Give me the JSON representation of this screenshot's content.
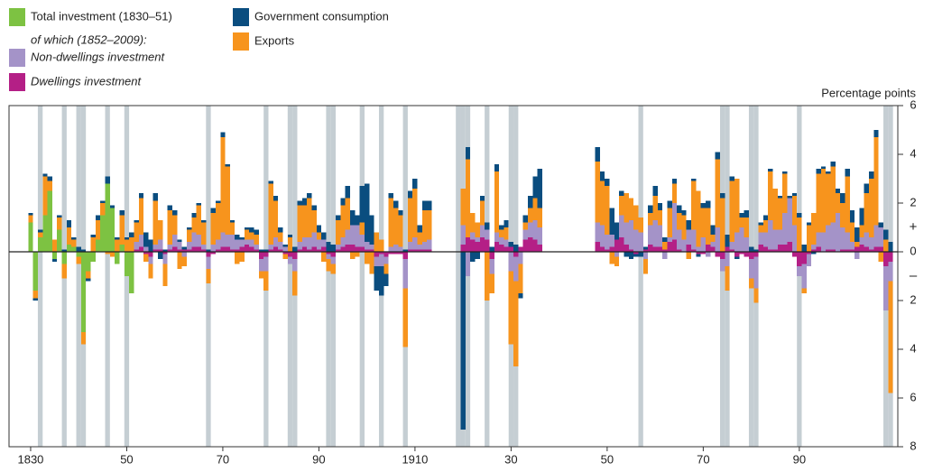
{
  "chart_data": {
    "type": "stacked-bar",
    "y_axis_label": "Percentage points",
    "positive_sign": "+",
    "negative_sign": "–",
    "legend_subheading": "of which (1852–2009):",
    "ylim": [
      -8,
      6
    ],
    "yticks": [
      6,
      4,
      2,
      0,
      {
        "value": -2,
        "label": "2"
      },
      {
        "value": -4,
        "label": "4"
      },
      {
        "value": -6,
        "label": "6"
      },
      {
        "value": -8,
        "label": "8"
      }
    ],
    "xlim": [
      1825.5,
      2010.5
    ],
    "xticks": [
      1830,
      {
        "value": 1850,
        "label": "50"
      },
      {
        "value": 1870,
        "label": "70"
      },
      {
        "value": 1890,
        "label": "90"
      },
      1910,
      {
        "value": 1930,
        "label": "30"
      },
      {
        "value": 1950,
        "label": "50"
      },
      {
        "value": 1970,
        "label": "70"
      },
      {
        "value": 1990,
        "label": "90"
      }
    ],
    "shade_color": "#c5ced3",
    "shaded_years": [
      1832,
      1837,
      1840,
      1841,
      1846,
      1850,
      1867,
      1879,
      1884,
      1885,
      1892,
      1893,
      1899,
      1903,
      1908,
      1919,
      1920,
      1921,
      1925,
      1930,
      1931,
      1957,
      1974,
      1975,
      1980,
      1981,
      1990,
      2008,
      2009
    ],
    "x": [
      1830,
      1831,
      1832,
      1833,
      1834,
      1835,
      1836,
      1837,
      1838,
      1839,
      1840,
      1841,
      1842,
      1843,
      1844,
      1845,
      1846,
      1847,
      1848,
      1849,
      1850,
      1851,
      1852,
      1853,
      1854,
      1855,
      1856,
      1857,
      1858,
      1859,
      1860,
      1861,
      1862,
      1863,
      1864,
      1865,
      1866,
      1867,
      1868,
      1869,
      1870,
      1871,
      1872,
      1873,
      1874,
      1875,
      1876,
      1877,
      1878,
      1879,
      1880,
      1881,
      1882,
      1883,
      1884,
      1885,
      1886,
      1887,
      1888,
      1889,
      1890,
      1891,
      1892,
      1893,
      1894,
      1895,
      1896,
      1897,
      1898,
      1899,
      1900,
      1901,
      1902,
      1903,
      1904,
      1905,
      1906,
      1907,
      1908,
      1909,
      1910,
      1911,
      1912,
      1913,
      1920,
      1921,
      1922,
      1923,
      1924,
      1925,
      1926,
      1927,
      1928,
      1929,
      1930,
      1931,
      1932,
      1933,
      1934,
      1935,
      1936,
      1948,
      1949,
      1950,
      1951,
      1952,
      1953,
      1954,
      1955,
      1956,
      1957,
      1958,
      1959,
      1960,
      1961,
      1962,
      1963,
      1964,
      1965,
      1966,
      1967,
      1968,
      1969,
      1970,
      1971,
      1972,
      1973,
      1974,
      1975,
      1976,
      1977,
      1978,
      1979,
      1980,
      1981,
      1982,
      1983,
      1984,
      1985,
      1986,
      1987,
      1988,
      1989,
      1990,
      1991,
      1992,
      1993,
      1994,
      1995,
      1996,
      1997,
      1998,
      1999,
      2000,
      2001,
      2002,
      2003,
      2004,
      2005,
      2006,
      2007,
      2008,
      2009
    ],
    "series": [
      {
        "name": "Total investment (1830–51)",
        "color": "#7dc242",
        "italic": false,
        "values": [
          1.2,
          -1.6,
          0.6,
          1.5,
          2.5,
          -0.3,
          0.9,
          -0.5,
          0.3,
          0.2,
          -0.2,
          -3.3,
          -0.8,
          -0.4,
          0.5,
          1.5,
          2.8,
          1.8,
          -0.5,
          0.3,
          -1.0,
          -1.7,
          null,
          null,
          null,
          null,
          null,
          null,
          null,
          null,
          null,
          null,
          null,
          null,
          null,
          null,
          null,
          null,
          null,
          null,
          null,
          null,
          null,
          null,
          null,
          null,
          null,
          null,
          null,
          null,
          null,
          null,
          null,
          null,
          null,
          null,
          null,
          null,
          null,
          null,
          null,
          null,
          null,
          null,
          null,
          null,
          null,
          null,
          null,
          null,
          null,
          null,
          null,
          null,
          null,
          null,
          null,
          null,
          null,
          null,
          null,
          null,
          null,
          null,
          null,
          null,
          null,
          null,
          null,
          null,
          null,
          null,
          null,
          null,
          null,
          null,
          null,
          null,
          null,
          null,
          null,
          null,
          null,
          null,
          null,
          null,
          null,
          null,
          null,
          null,
          null,
          null,
          null,
          null,
          null,
          null,
          null,
          null,
          null,
          null,
          null,
          null,
          null,
          null,
          null,
          null,
          null,
          null,
          null,
          null,
          null,
          null,
          null,
          null,
          null,
          null,
          null,
          null,
          null,
          null,
          null,
          null,
          null,
          null,
          null,
          null,
          null,
          null,
          null,
          null,
          null,
          null,
          null,
          null,
          null,
          null,
          null,
          null,
          null,
          null,
          null,
          null,
          null
        ]
      },
      {
        "name": "Non-dwellings investment",
        "color": "#a493c8",
        "italic": true,
        "values": [
          null,
          null,
          null,
          null,
          null,
          null,
          null,
          null,
          null,
          null,
          null,
          null,
          null,
          null,
          null,
          null,
          null,
          null,
          null,
          null,
          null,
          null,
          0.3,
          0.5,
          0.2,
          -0.3,
          0.2,
          0.4,
          -0.4,
          0.2,
          0.5,
          0.3,
          -0.2,
          0.3,
          0.6,
          0.5,
          0.2,
          -0.5,
          0.3,
          0.4,
          0.6,
          0.5,
          0.6,
          0.4,
          0.3,
          0.2,
          0.3,
          0.2,
          -0.5,
          -0.6,
          0.2,
          0.4,
          0.3,
          0.2,
          -0.3,
          -0.5,
          0.3,
          0.4,
          0.5,
          0.6,
          0.4,
          0.3,
          -0.2,
          -0.3,
          0.2,
          0.4,
          0.6,
          0.8,
          0.9,
          0.5,
          0.3,
          0.2,
          -0.4,
          -0.5,
          -0.3,
          0.2,
          0.3,
          0.2,
          -1.2,
          0.3,
          0.5,
          0.2,
          0.3,
          0.4,
          0.8,
          -1.0,
          0.3,
          0.2,
          0.5,
          0.4,
          -0.6,
          0.4,
          0.3,
          0.3,
          -0.8,
          -1.0,
          -0.5,
          0.4,
          0.6,
          0.8,
          0.7,
          0.8,
          0.9,
          0.6,
          0.5,
          -0.2,
          0.9,
          0.9,
          1.2,
          0.9,
          0.8,
          -0.3,
          0.8,
          1.1,
          0.9,
          -0.3,
          0.2,
          1.5,
          0.8,
          0.5,
          0.6,
          0.8,
          0.2,
          0.6,
          -0.2,
          0.2,
          1.0,
          -0.5,
          -0.6,
          0.3,
          0.8,
          1.0,
          0.6,
          -0.8,
          -1.3,
          0.5,
          0.6,
          1.2,
          0.8,
          0.6,
          1.3,
          1.8,
          1.1,
          -0.4,
          -1.0,
          -0.5,
          0.2,
          0.6,
          0.8,
          1.0,
          1.1,
          1.6,
          0.9,
          0.7,
          0.3,
          -0.3,
          0.3,
          0.6,
          0.5,
          0.9,
          0.8,
          -1.8,
          -0.8
        ]
      },
      {
        "name": "Dwellings investment",
        "color": "#b41f86",
        "italic": true,
        "values": [
          null,
          null,
          null,
          null,
          null,
          null,
          null,
          null,
          null,
          null,
          null,
          null,
          null,
          null,
          null,
          null,
          null,
          null,
          null,
          null,
          null,
          null,
          0.1,
          0.2,
          -0.1,
          -0.2,
          0.1,
          0.1,
          -0.1,
          0.1,
          0.2,
          0.1,
          0.1,
          0.1,
          0.2,
          0.2,
          0.1,
          -0.2,
          -0.1,
          0.1,
          0.2,
          0.2,
          0.1,
          0.1,
          0.2,
          0.3,
          0.2,
          0.1,
          -0.3,
          -0.2,
          0.1,
          0.2,
          0.1,
          -0.1,
          -0.2,
          -0.3,
          0.1,
          0.2,
          0.1,
          0.2,
          0.1,
          0.2,
          -0.1,
          -0.2,
          0.1,
          0.2,
          0.3,
          0.3,
          0.2,
          0.2,
          0.1,
          0.1,
          -0.2,
          -0.1,
          -0.2,
          -0.1,
          -0.1,
          -0.1,
          -0.3,
          0.1,
          0.1,
          0.1,
          0.1,
          0.1,
          0.3,
          0.6,
          0.5,
          0.4,
          0.6,
          0.5,
          -0.3,
          0.4,
          0.3,
          0.2,
          0.2,
          -0.2,
          0.2,
          0.5,
          0.6,
          0.5,
          0.3,
          0.4,
          0.2,
          0.1,
          0.2,
          0.5,
          0.6,
          0.3,
          0.1,
          -0.1,
          0.0,
          0.1,
          0.3,
          0.2,
          0.2,
          0.1,
          0.4,
          0.5,
          0.1,
          0.0,
          0.3,
          0.1,
          -0.1,
          -0.1,
          0.3,
          0.2,
          -0.2,
          -0.3,
          0.2,
          0.1,
          -0.2,
          -0.1,
          -0.2,
          -0.3,
          -0.2,
          0.3,
          0.2,
          0.1,
          0.1,
          0.3,
          0.3,
          0.4,
          -0.2,
          -0.6,
          -0.5,
          -0.1,
          0.1,
          0.2,
          0.0,
          0.1,
          0.1,
          0.0,
          0.1,
          0.1,
          0.1,
          0.2,
          0.3,
          0.2,
          0.1,
          0.2,
          0.2,
          -0.6,
          -0.4
        ]
      },
      {
        "name": "Government consumption",
        "color": "#0a4d7f",
        "italic": false,
        "values": [
          0.1,
          -0.1,
          0.1,
          0.1,
          0.2,
          -0.1,
          0.1,
          0.1,
          0.3,
          0.1,
          0.2,
          0.1,
          -0.1,
          0.1,
          0.2,
          0.1,
          0.3,
          0.1,
          0.1,
          0.2,
          0.1,
          0.2,
          0.1,
          0.2,
          0.6,
          0.5,
          0.3,
          -0.3,
          0.1,
          0.2,
          0.2,
          0.1,
          0.1,
          0.1,
          0.2,
          0.1,
          0.1,
          0.1,
          0.2,
          0.1,
          0.2,
          0.1,
          0.1,
          0.2,
          0.1,
          0.1,
          0.2,
          0.2,
          0.1,
          0.1,
          0.1,
          0.2,
          0.2,
          0.1,
          0.1,
          0.2,
          0.2,
          0.3,
          0.2,
          0.2,
          0.3,
          0.3,
          0.4,
          0.3,
          0.2,
          0.3,
          0.5,
          0.6,
          0.4,
          1.5,
          2.4,
          1.2,
          -1.0,
          -1.2,
          -0.5,
          0.2,
          0.3,
          0.2,
          0.1,
          0.3,
          0.4,
          0.3,
          0.4,
          0.4,
          -7.3,
          0.5,
          -0.4,
          -0.3,
          0.2,
          0.3,
          0.2,
          0.3,
          0.2,
          0.3,
          0.2,
          0.3,
          -0.2,
          0.3,
          0.5,
          0.9,
          1.6,
          0.6,
          0.4,
          0.3,
          1.1,
          0.7,
          0.2,
          -0.2,
          -0.3,
          -0.1,
          -0.2,
          0.1,
          0.3,
          0.4,
          0.3,
          0.2,
          0.3,
          0.2,
          0.3,
          0.2,
          0.4,
          0.1,
          -0.1,
          0.2,
          0.3,
          0.4,
          0.3,
          0.2,
          0.5,
          0.2,
          -0.1,
          0.2,
          0.3,
          0.2,
          0.1,
          0.1,
          0.2,
          0.1,
          0.0,
          0.1,
          0.1,
          0.1,
          0.1,
          0.2,
          0.3,
          0.1,
          -0.1,
          0.2,
          0.1,
          0.1,
          0.2,
          0.2,
          0.4,
          0.3,
          0.5,
          0.6,
          0.7,
          0.4,
          0.3,
          0.3,
          0.2,
          0.4,
          0.4
        ]
      },
      {
        "name": "Exports",
        "color": "#f7941d",
        "italic": false,
        "values": [
          0.3,
          -0.3,
          0.2,
          1.6,
          0.4,
          0.5,
          0.5,
          -0.6,
          0.7,
          0.3,
          -0.3,
          -0.5,
          -0.3,
          0.6,
          0.8,
          0.5,
          -0.1,
          -0.2,
          0.5,
          1.2,
          0.5,
          0.6,
          0.8,
          1.5,
          -0.3,
          -0.6,
          1.8,
          0.8,
          -0.9,
          1.4,
          0.8,
          -0.7,
          -0.4,
          0.5,
          0.6,
          1.2,
          0.9,
          -0.6,
          1.3,
          1.5,
          3.9,
          2.8,
          0.5,
          -0.5,
          -0.4,
          0.4,
          0.3,
          0.4,
          -0.3,
          -0.8,
          2.5,
          1.5,
          0.4,
          -0.2,
          0.6,
          -1.0,
          1.5,
          1.3,
          1.6,
          0.9,
          0.3,
          -0.4,
          -0.5,
          -0.4,
          1.0,
          1.3,
          1.3,
          -0.3,
          -0.2,
          0.5,
          -0.5,
          -0.9,
          0.8,
          0.5,
          -0.4,
          2.0,
          1.5,
          1.3,
          -2.4,
          1.8,
          2.0,
          0.5,
          1.3,
          1.2,
          1.5,
          3.2,
          0.8,
          0.6,
          1.0,
          -2.0,
          -0.8,
          2.5,
          0.3,
          0.5,
          -3.0,
          -3.5,
          -1.2,
          0.3,
          0.6,
          0.9,
          0.8,
          2.5,
          1.8,
          2.0,
          -0.5,
          -0.4,
          0.8,
          1.2,
          0.9,
          1.0,
          0.6,
          -0.6,
          0.5,
          1.0,
          0.6,
          0.3,
          1.2,
          0.8,
          0.7,
          1.0,
          -0.3,
          2.0,
          2.3,
          1.2,
          1.5,
          0.3,
          2.8,
          2.2,
          -1.0,
          2.5,
          2.2,
          0.4,
          0.8,
          -0.4,
          -0.6,
          0.3,
          0.5,
          2.0,
          1.7,
          1.3,
          1.6,
          0.0,
          1.2,
          1.4,
          -0.2,
          1.1,
          1.3,
          2.4,
          2.6,
          2.1,
          2.3,
          0.8,
          1.0,
          2.3,
          0.8,
          0.2,
          0.5,
          1.6,
          2.4,
          3.6,
          -0.4,
          0.5,
          -4.6
        ]
      }
    ]
  }
}
